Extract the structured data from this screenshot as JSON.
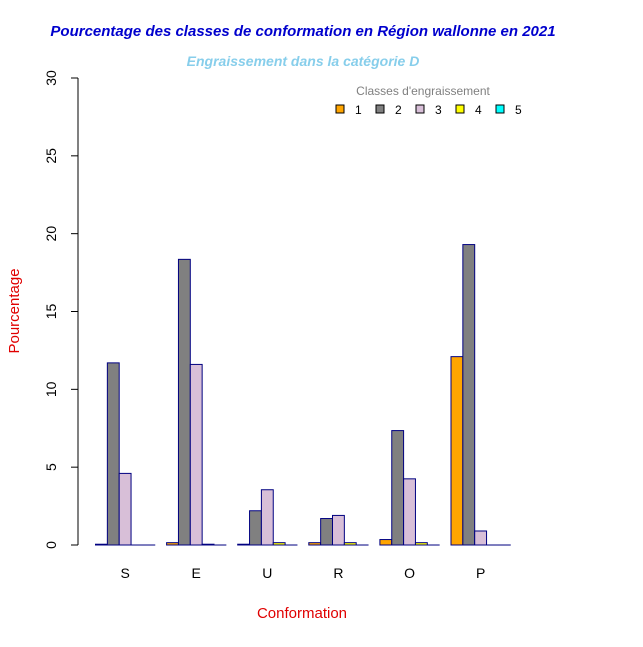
{
  "chart_data": {
    "type": "bar",
    "title": "Pourcentage des classes de conformation en Région wallonne en 2021",
    "subtitle": "Engraissement dans la catégorie D",
    "xlabel": "Conformation",
    "ylabel": "Pourcentage",
    "ylim": [
      0,
      30
    ],
    "yticks": [
      "0",
      "5",
      "10",
      "15",
      "20",
      "25",
      "30"
    ],
    "categories": [
      "S",
      "E",
      "U",
      "R",
      "O",
      "P"
    ],
    "legend_title": "Classes d'engraissement",
    "legend_placement": "top-right",
    "series": [
      {
        "name": "1",
        "color": "#FFA500",
        "values": [
          0.05,
          0.15,
          0.05,
          0.15,
          0.35,
          12.1
        ]
      },
      {
        "name": "2",
        "color": "#808080",
        "values": [
          11.7,
          18.35,
          2.2,
          1.7,
          7.35,
          19.3
        ]
      },
      {
        "name": "3",
        "color": "#D8BFD8",
        "values": [
          4.6,
          11.6,
          3.55,
          1.9,
          4.25,
          0.9
        ]
      },
      {
        "name": "4",
        "color": "#FFFF00",
        "values": [
          0,
          0.05,
          0.15,
          0.15,
          0.15,
          0
        ]
      },
      {
        "name": "5",
        "color": "#00FFFF",
        "values": [
          0,
          0,
          0,
          0,
          0,
          0
        ]
      }
    ]
  }
}
